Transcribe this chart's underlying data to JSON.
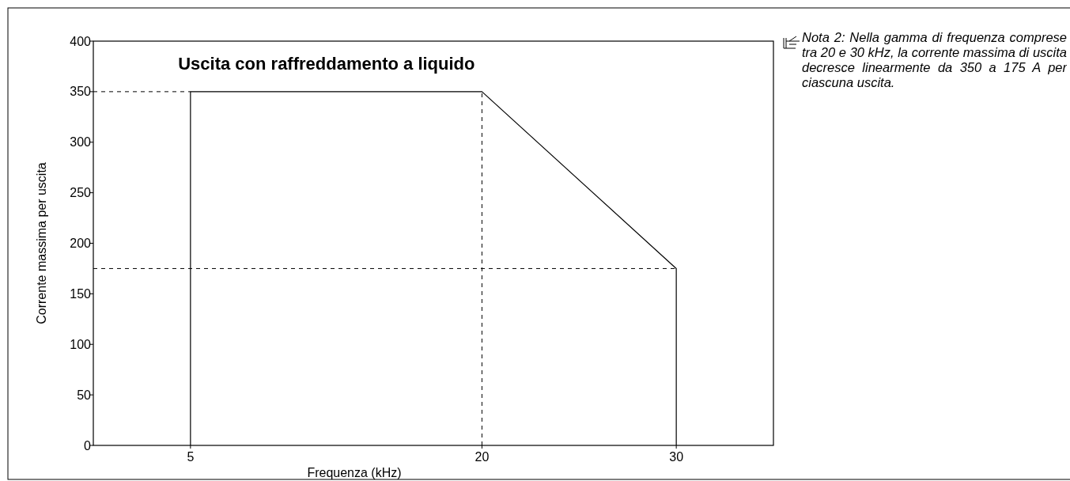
{
  "chart_data": {
    "type": "line",
    "title": "Uscita con raffreddamento a liquido",
    "xlabel": "Frequenza (kHz)",
    "ylabel": "Corrente massima per uscita",
    "series": [
      {
        "x": [
          5,
          5,
          20,
          30,
          30
        ],
        "values": [
          0,
          350,
          350,
          175,
          0
        ],
        "color": "#000000"
      }
    ],
    "xlim": [
      0,
      35
    ],
    "xticks": [
      5,
      20,
      30
    ],
    "ylim": [
      0,
      400
    ],
    "yticks": [
      0,
      50,
      100,
      150,
      200,
      250,
      300,
      350,
      400
    ],
    "ref_lines": [
      {
        "axis": "y",
        "value": 350,
        "line_style": "dashed",
        "color": "#000000"
      },
      {
        "axis": "y",
        "value": 175,
        "line_style": "dashed",
        "color": "#000000"
      },
      {
        "axis": "x",
        "value": 20,
        "line_style": "dashed",
        "color": "#000000"
      }
    ],
    "marker": "none",
    "line_style": "solid",
    "annotations": [
      "Nota 2: Nella gamma di frequenza comprese tra 20 e 30 kHz, la corrente massima di uscita decresce linearmente da 350 a 175 A per ciascuna uscita."
    ]
  }
}
